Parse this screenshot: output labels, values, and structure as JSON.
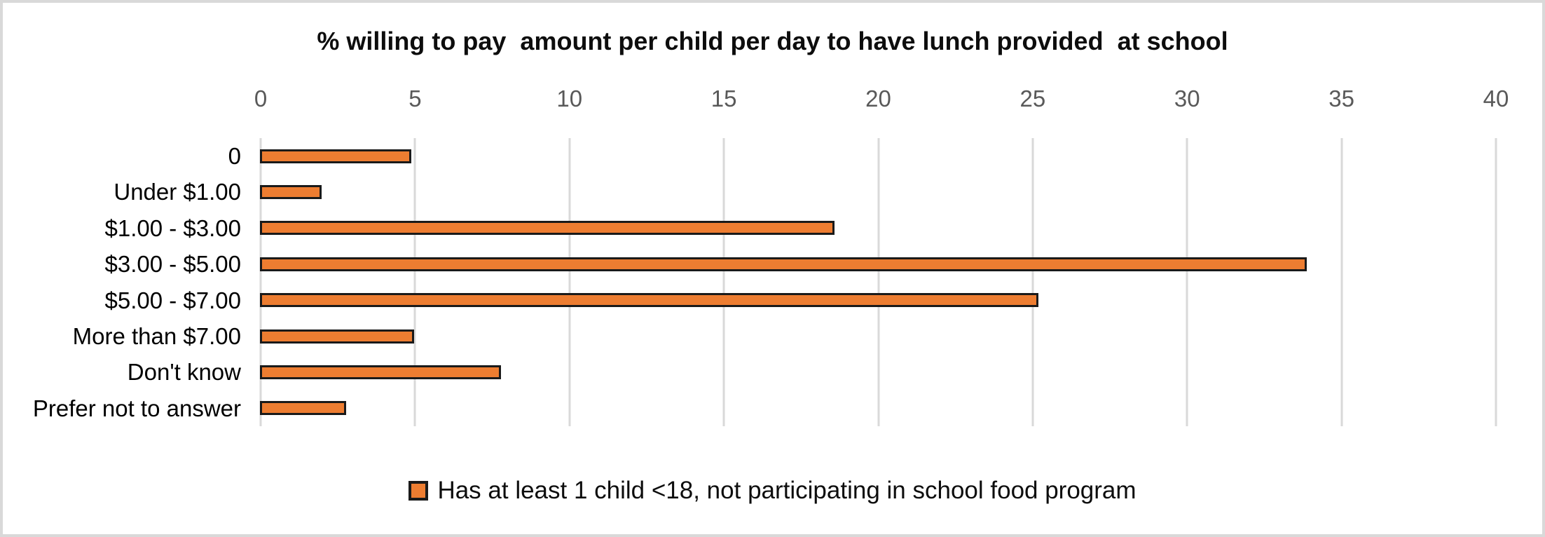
{
  "chart": {
    "title": "% willing to pay  amount per child per day to have lunch provided  at school",
    "legend_label": "Has at least 1 child <18, not participating in school food program"
  },
  "chart_data": {
    "type": "bar",
    "orientation": "horizontal",
    "title": "% willing to pay  amount per child per day to have lunch provided  at school",
    "categories": [
      "0",
      "Under $1.00",
      "$1.00 - $3.00",
      "$3.00 - $5.00",
      "$5.00 - $7.00",
      "More than $7.00",
      "Don't know",
      "Prefer not to answer"
    ],
    "series": [
      {
        "name": "Has at least 1 child <18, not participating in school food program",
        "values": [
          4.9,
          2.0,
          18.6,
          33.9,
          25.2,
          5.0,
          7.8,
          2.8
        ]
      }
    ],
    "xlabel": "",
    "ylabel": "",
    "xlim": [
      0,
      40
    ],
    "xticks": [
      0,
      5,
      10,
      15,
      20,
      25,
      30,
      35,
      40
    ],
    "grid": true,
    "legend_position": "bottom",
    "colors": {
      "bar_fill": "#ED7D31",
      "bar_border": "#1A1A1A",
      "gridline": "#D9D9D9",
      "tick_label": "#595959",
      "category_label": "#000000",
      "title": "#0D0D0D",
      "chart_border": "#D9D9D9",
      "background": "#FFFFFF"
    }
  }
}
